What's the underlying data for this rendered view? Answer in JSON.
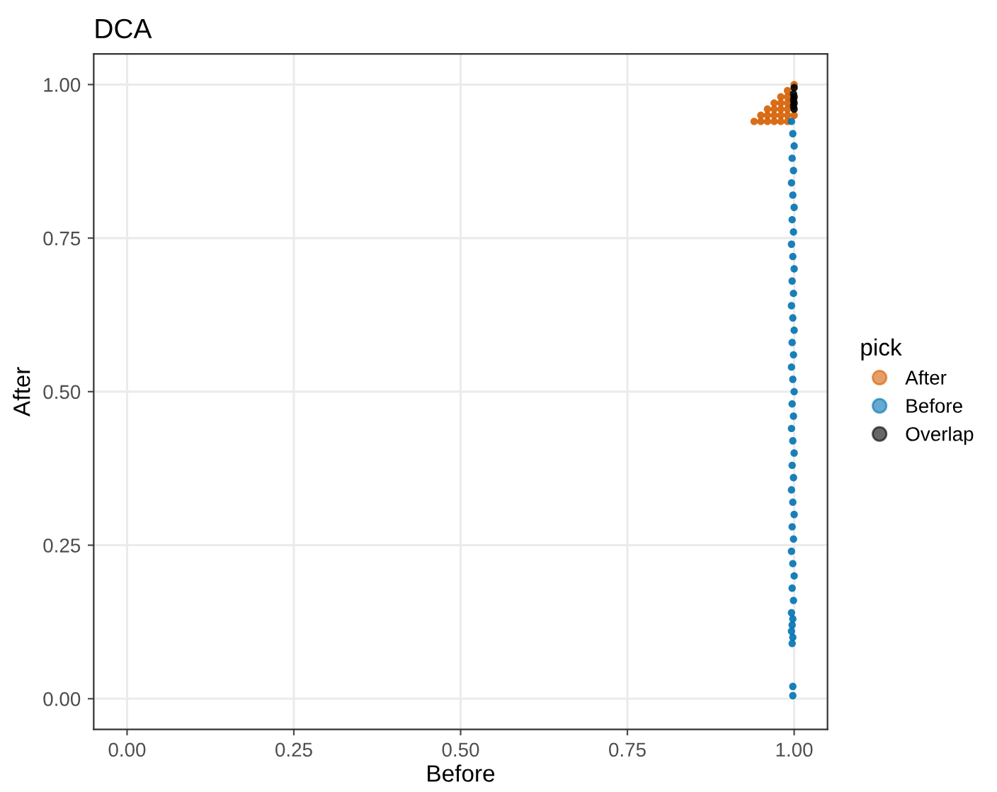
{
  "chart_data": {
    "type": "scatter",
    "title": "DCA",
    "xlabel": "Before",
    "ylabel": "After",
    "legend_title": "pick",
    "xlim": [
      -0.05,
      1.05
    ],
    "ylim": [
      -0.05,
      1.05
    ],
    "xticks": [
      {
        "value": 0,
        "label": "0.00"
      },
      {
        "value": 0.25,
        "label": "0.25"
      },
      {
        "value": 0.5,
        "label": "0.50"
      },
      {
        "value": 0.75,
        "label": "0.75"
      },
      {
        "value": 1,
        "label": "1.00"
      }
    ],
    "yticks": [
      {
        "value": 0,
        "label": "0.00"
      },
      {
        "value": 0.25,
        "label": "0.25"
      },
      {
        "value": 0.5,
        "label": "0.50"
      },
      {
        "value": 0.75,
        "label": "0.75"
      },
      {
        "value": 1,
        "label": "1.00"
      }
    ],
    "grid": true,
    "legend": "right",
    "marker": "circle",
    "series": [
      {
        "name": "After",
        "color": "#d55e00",
        "x": [
          0.94,
          0.95,
          0.95,
          0.96,
          0.96,
          0.96,
          0.97,
          0.97,
          0.97,
          0.97,
          0.98,
          0.98,
          0.98,
          0.98,
          0.98,
          0.99,
          0.99,
          0.99,
          0.99,
          0.99,
          0.99,
          1.0,
          1.0
        ],
        "values": [
          0.94,
          0.94,
          0.95,
          0.94,
          0.95,
          0.96,
          0.94,
          0.95,
          0.96,
          0.97,
          0.94,
          0.95,
          0.96,
          0.97,
          0.98,
          0.94,
          0.95,
          0.96,
          0.97,
          0.98,
          0.99,
          0.95,
          1.0
        ]
      },
      {
        "name": "Before",
        "color": "#0072b2",
        "x": [
          0.996,
          0.998,
          1.0,
          0.997,
          0.999,
          0.996,
          0.998,
          1.0,
          0.997,
          0.999,
          0.996,
          0.998,
          1.0,
          0.997,
          0.999,
          0.996,
          0.998,
          1.0,
          0.997,
          0.999,
          0.996,
          0.998,
          1.0,
          0.997,
          0.999,
          0.996,
          0.998,
          1.0,
          0.997,
          0.999,
          0.996,
          0.998,
          1.0,
          0.997,
          0.999,
          0.996,
          0.998,
          1.0,
          0.997,
          0.999,
          0.996,
          0.998,
          0.997,
          0.996,
          0.998,
          0.997,
          0.998,
          0.998
        ],
        "values": [
          0.94,
          0.92,
          0.9,
          0.88,
          0.86,
          0.84,
          0.82,
          0.8,
          0.78,
          0.76,
          0.74,
          0.72,
          0.7,
          0.68,
          0.66,
          0.64,
          0.62,
          0.6,
          0.58,
          0.56,
          0.54,
          0.52,
          0.5,
          0.48,
          0.46,
          0.44,
          0.42,
          0.4,
          0.38,
          0.36,
          0.34,
          0.32,
          0.3,
          0.28,
          0.26,
          0.24,
          0.22,
          0.2,
          0.18,
          0.16,
          0.14,
          0.13,
          0.12,
          0.11,
          0.1,
          0.09,
          0.02,
          0.005
        ]
      },
      {
        "name": "Overlap",
        "color": "#000000",
        "x": [
          1.0,
          0.999,
          1.0,
          0.999,
          1.0,
          0.999,
          1.0
        ],
        "values": [
          0.96,
          0.965,
          0.97,
          0.975,
          0.98,
          0.985,
          0.995
        ]
      }
    ]
  }
}
